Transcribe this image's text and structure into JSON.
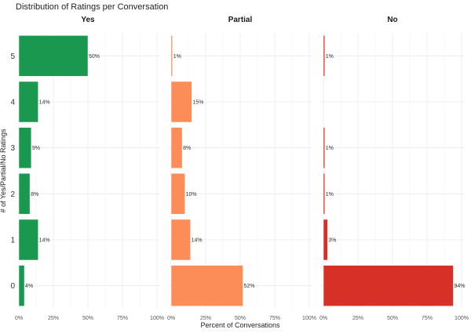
{
  "chart_data": {
    "type": "bar",
    "orientation": "horizontal",
    "title": "Distribution of Ratings per Conversation",
    "xlabel": "Percent of Conversations",
    "ylabel": "# of Yes/Partial/No Ratings",
    "categories": [
      "5",
      "4",
      "3",
      "2",
      "1",
      "0"
    ],
    "xlim": [
      0,
      100
    ],
    "x_ticks": [
      "0%",
      "25%",
      "50%",
      "75%",
      "100%"
    ],
    "grid": true,
    "panels": [
      {
        "name": "Yes",
        "color": "#1a9850",
        "values": [
          50,
          14,
          9,
          8,
          14,
          4
        ],
        "labels": [
          "50%",
          "14%",
          "9%",
          "8%",
          "14%",
          "4%"
        ]
      },
      {
        "name": "Partial",
        "color": "#fc8d59",
        "values": [
          1,
          15,
          8,
          10,
          14,
          52
        ],
        "labels": [
          "1%",
          "15%",
          "8%",
          "10%",
          "14%",
          "52%"
        ]
      },
      {
        "name": "No",
        "color": "#d73027",
        "values": [
          1,
          null,
          1,
          1,
          3,
          94
        ],
        "labels": [
          "1%",
          null,
          "1%",
          "1%",
          "3%",
          "94%"
        ]
      }
    ]
  }
}
